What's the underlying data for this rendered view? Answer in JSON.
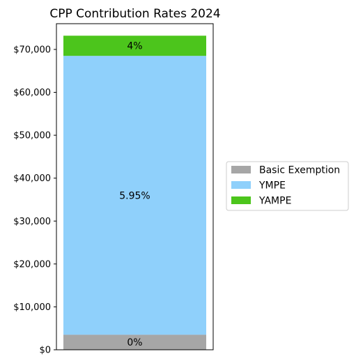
{
  "chart_data": {
    "type": "bar",
    "stacked": true,
    "title": "CPP Contribution Rates 2024",
    "xlabel": "",
    "ylabel": "",
    "ylim": [
      0,
      76000
    ],
    "yticks": [
      0,
      10000,
      20000,
      30000,
      40000,
      50000,
      60000,
      70000
    ],
    "ytick_labels": [
      "$0",
      "$10,000",
      "$20,000",
      "$30,000",
      "$40,000",
      "$50,000",
      "$60,000",
      "$70,000"
    ],
    "categories": [
      ""
    ],
    "series": [
      {
        "name": "Basic Exemption",
        "range": [
          0,
          3500
        ],
        "label": "0%",
        "color": "#a6a6a6"
      },
      {
        "name": "YMPE",
        "range": [
          3500,
          68500
        ],
        "label": "5.95%",
        "color": "#8fd0fb"
      },
      {
        "name": "YAMPE",
        "range": [
          68500,
          73200
        ],
        "label": "4%",
        "color": "#4cc51c"
      }
    ],
    "legend_position": "center-right",
    "grid": false
  }
}
